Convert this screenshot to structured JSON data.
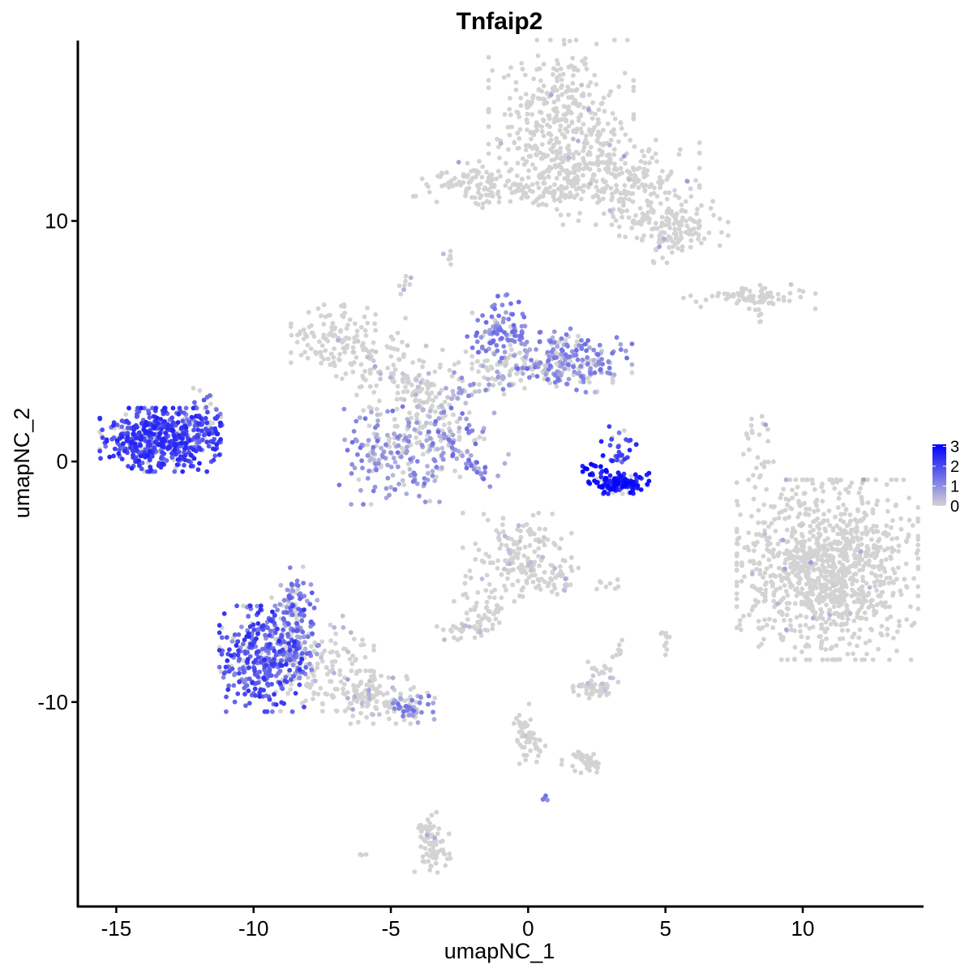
{
  "chart_data": {
    "type": "scatter",
    "title": "Tnfaip2",
    "xlabel": "umapNC_1",
    "ylabel": "umapNC_2",
    "xlim": [
      -16.4,
      14.4
    ],
    "ylim": [
      -18.5,
      17.5
    ],
    "x_ticks": [
      -15,
      -10,
      -5,
      0,
      5,
      10
    ],
    "x_tick_labels": [
      "-15",
      "-10",
      "-5",
      "0",
      "5",
      "10"
    ],
    "y_ticks": [
      -10,
      0,
      10
    ],
    "y_tick_labels": [
      "-10",
      "0",
      "10"
    ],
    "grid": false,
    "legend_position": "right",
    "color_scale": {
      "low_color": "#d3d3d3",
      "high_color": "#0000ff",
      "min": 0,
      "max": 3.1,
      "ticks": [
        0,
        1,
        2,
        3
      ],
      "tick_labels": [
        "0",
        "1",
        "2",
        "3"
      ]
    },
    "clusters": [
      {
        "cx": 1.2,
        "cy": 14.0,
        "sx": 1.2,
        "sy": 1.6,
        "n": 420,
        "expr": 0.0,
        "ehi": 0.2
      },
      {
        "cx": 3.6,
        "cy": 11.6,
        "sx": 1.2,
        "sy": 0.8,
        "n": 200,
        "expr": 0.0,
        "ehi": 0.3
      },
      {
        "cx": 5.3,
        "cy": 9.8,
        "sx": 0.9,
        "sy": 0.7,
        "n": 150,
        "expr": 0.0,
        "ehi": 0.2
      },
      {
        "cx": 0.6,
        "cy": 11.3,
        "sx": 1.1,
        "sy": 0.5,
        "n": 90,
        "expr": 0.0,
        "ehi": 0.2
      },
      {
        "cx": -2.2,
        "cy": 11.6,
        "sx": 0.9,
        "sy": 0.4,
        "n": 90,
        "expr": 0.0,
        "ehi": 0.3
      },
      {
        "cx": 8.3,
        "cy": 6.9,
        "sx": 1.2,
        "sy": 0.25,
        "n": 70,
        "expr": 0.0,
        "ehi": 0.3
      },
      {
        "cx": -7.1,
        "cy": 5.2,
        "sx": 0.7,
        "sy": 0.6,
        "n": 110,
        "expr": 0.0,
        "ehi": 0.3
      },
      {
        "cx": -5.4,
        "cy": 4.2,
        "sx": 1.0,
        "sy": 0.8,
        "n": 80,
        "expr": 0.0,
        "ehi": 0.4
      },
      {
        "cx": -0.9,
        "cy": 5.4,
        "sx": 0.6,
        "sy": 0.7,
        "n": 110,
        "expr": 0.5,
        "ehi": 1.6
      },
      {
        "cx": 1.8,
        "cy": 4.2,
        "sx": 0.9,
        "sy": 0.6,
        "n": 150,
        "expr": 0.4,
        "ehi": 1.5
      },
      {
        "cx": 0.0,
        "cy": 3.9,
        "sx": 1.4,
        "sy": 0.5,
        "n": 100,
        "expr": 0.0,
        "ehi": 0.9
      },
      {
        "cx": -3.8,
        "cy": 2.0,
        "sx": 1.0,
        "sy": 1.2,
        "n": 110,
        "expr": 0.0,
        "ehi": 0.8
      },
      {
        "cx": -5.6,
        "cy": 0.2,
        "sx": 0.6,
        "sy": 0.9,
        "n": 90,
        "expr": 0.2,
        "ehi": 1.5
      },
      {
        "cx": -3.8,
        "cy": 0.3,
        "sx": 0.6,
        "sy": 0.9,
        "n": 90,
        "expr": 0.2,
        "ehi": 1.4
      },
      {
        "cx": -2.0,
        "cy": 0.9,
        "sx": 0.8,
        "sy": 0.7,
        "n": 30,
        "expr": 0.3,
        "ehi": 1.6
      },
      {
        "cx": -13.4,
        "cy": 0.9,
        "sx": 1.0,
        "sy": 0.6,
        "n": 520,
        "expr": 1.2,
        "ehi": 2.6
      },
      {
        "cx": -11.8,
        "cy": 1.8,
        "sx": 0.4,
        "sy": 0.6,
        "n": 45,
        "expr": 0.9,
        "ehi": 2.2
      },
      {
        "cx": 3.3,
        "cy": -0.9,
        "sx": 0.5,
        "sy": 0.2,
        "n": 150,
        "expr": 2.2,
        "ehi": 3.1
      },
      {
        "cx": 2.5,
        "cy": -0.3,
        "sx": 0.3,
        "sy": 0.25,
        "n": 20,
        "expr": 2.3,
        "ehi": 3.1
      },
      {
        "cx": 3.3,
        "cy": 0.6,
        "sx": 0.3,
        "sy": 0.4,
        "n": 30,
        "expr": 1.3,
        "ehi": 2.6
      },
      {
        "cx": 8.3,
        "cy": 0.2,
        "sx": 0.3,
        "sy": 0.8,
        "n": 28,
        "expr": 0.0,
        "ehi": 0.3
      },
      {
        "cx": 10.9,
        "cy": -4.5,
        "sx": 1.5,
        "sy": 1.7,
        "n": 1050,
        "expr": 0.0,
        "ehi": 0.2
      },
      {
        "cx": -0.4,
        "cy": -3.9,
        "sx": 0.9,
        "sy": 0.8,
        "n": 150,
        "expr": 0.0,
        "ehi": 0.4
      },
      {
        "cx": 1.0,
        "cy": -4.9,
        "sx": 0.4,
        "sy": 0.4,
        "n": 40,
        "expr": 0.0,
        "ehi": 0.6
      },
      {
        "cx": -1.6,
        "cy": -6.3,
        "sx": 0.5,
        "sy": 0.6,
        "n": 30,
        "expr": 0.0,
        "ehi": 0.2
      },
      {
        "cx": -2.4,
        "cy": -7.0,
        "sx": 0.5,
        "sy": 0.2,
        "n": 30,
        "expr": 0.0,
        "ehi": 0.5
      },
      {
        "cx": -9.7,
        "cy": -8.2,
        "sx": 0.7,
        "sy": 1.0,
        "n": 320,
        "expr": 0.9,
        "ehi": 2.5
      },
      {
        "cx": -8.5,
        "cy": -6.7,
        "sx": 0.4,
        "sy": 1.1,
        "n": 160,
        "expr": 0.3,
        "ehi": 1.8
      },
      {
        "cx": -7.6,
        "cy": -8.4,
        "sx": 0.9,
        "sy": 0.9,
        "n": 130,
        "expr": 0.0,
        "ehi": 0.8
      },
      {
        "cx": -5.6,
        "cy": -9.8,
        "sx": 1.0,
        "sy": 0.5,
        "n": 130,
        "expr": 0.0,
        "ehi": 0.8
      },
      {
        "cx": -4.3,
        "cy": -10.3,
        "sx": 0.4,
        "sy": 0.25,
        "n": 40,
        "expr": 0.4,
        "ehi": 1.5
      },
      {
        "cx": 2.4,
        "cy": -9.4,
        "sx": 0.4,
        "sy": 0.25,
        "n": 45,
        "expr": 0.0,
        "ehi": 0.5
      },
      {
        "cx": 2.5,
        "cy": -8.6,
        "sx": 0.3,
        "sy": 0.2,
        "n": 12,
        "expr": 0.0,
        "ehi": 0.2
      },
      {
        "cx": 0.0,
        "cy": -11.4,
        "sx": 0.2,
        "sy": 0.6,
        "n": 30,
        "expr": 0.0,
        "ehi": 0.2
      },
      {
        "cx": 2.1,
        "cy": -12.5,
        "sx": 0.4,
        "sy": 0.2,
        "n": 25,
        "expr": 0.0,
        "ehi": 0.2
      },
      {
        "cx": -3.5,
        "cy": -15.9,
        "sx": 0.3,
        "sy": 0.6,
        "n": 60,
        "expr": 0.0,
        "ehi": 0.2
      },
      {
        "cx": 5.0,
        "cy": -7.5,
        "sx": 0.1,
        "sy": 0.3,
        "n": 10,
        "expr": 0.0,
        "ehi": 0.3
      },
      {
        "cx": 3.4,
        "cy": -7.6,
        "sx": 0.15,
        "sy": 0.4,
        "n": 8,
        "expr": 0.0,
        "ehi": 0.2
      },
      {
        "cx": 2.9,
        "cy": -5.1,
        "sx": 0.3,
        "sy": 0.15,
        "n": 8,
        "expr": 0.0,
        "ehi": 0.2
      },
      {
        "cx": -2.9,
        "cy": 8.5,
        "sx": 0.1,
        "sy": 0.15,
        "n": 6,
        "expr": 0.0,
        "ehi": 0.6
      },
      {
        "cx": -4.6,
        "cy": 7.4,
        "sx": 0.15,
        "sy": 0.2,
        "n": 8,
        "expr": 0.0,
        "ehi": 0.6
      },
      {
        "cx": 0.6,
        "cy": -13.9,
        "sx": 0.1,
        "sy": 0.1,
        "n": 4,
        "expr": 0.8,
        "ehi": 1.5
      },
      {
        "cx": -6.0,
        "cy": -16.3,
        "sx": 0.1,
        "sy": 0.1,
        "n": 3,
        "expr": 0.0,
        "ehi": 0.1
      }
    ],
    "paths": [
      {
        "from": [
          -3.2,
          1.2
        ],
        "to": [
          -1.4,
          -0.8
        ],
        "n": 40,
        "spread": 0.12,
        "expr": 0.2,
        "ehi": 1.6
      },
      {
        "from": [
          -3.0,
          2.6
        ],
        "to": [
          0.8,
          4.1
        ],
        "n": 50,
        "spread": 0.25,
        "expr": 0.0,
        "ehi": 1.2
      },
      {
        "from": [
          -4.5,
          3.8
        ],
        "to": [
          -3.2,
          2.0
        ],
        "n": 35,
        "spread": 0.3,
        "expr": 0.0,
        "ehi": 0.5
      },
      {
        "from": [
          8.0,
          6.8
        ],
        "to": [
          8.6,
          5.8
        ],
        "n": 10,
        "spread": 0.1,
        "expr": 0.0,
        "ehi": 0.1
      },
      {
        "from": [
          -0.9,
          -6.0
        ],
        "to": [
          -1.8,
          -6.8
        ],
        "n": 15,
        "spread": 0.15,
        "expr": 0.0,
        "ehi": 0.3
      },
      {
        "from": [
          -0.7,
          -10.5
        ],
        "to": [
          0.5,
          -12.1
        ],
        "n": 25,
        "spread": 0.15,
        "expr": 0.0,
        "ehi": 0.2
      },
      {
        "from": [
          1.6,
          -12.1
        ],
        "to": [
          2.5,
          -12.8
        ],
        "n": 20,
        "spread": 0.1,
        "expr": 0.0,
        "ehi": 0.2
      },
      {
        "from": [
          -3.8,
          -15.0
        ],
        "to": [
          -3.5,
          -16.5
        ],
        "n": 20,
        "spread": 0.1,
        "expr": 0.0,
        "ehi": 0.2
      }
    ]
  }
}
